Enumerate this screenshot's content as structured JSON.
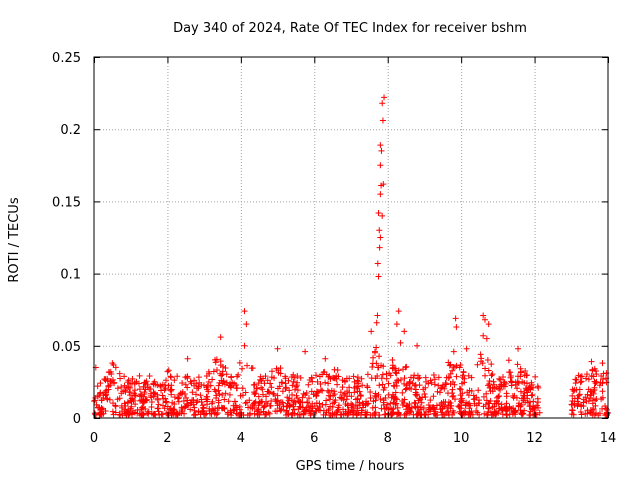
{
  "chart_data": {
    "type": "scatter",
    "title": "Day 340 of 2024, Rate Of TEC Index for receiver bshm",
    "xlabel": "GPS time / hours",
    "ylabel": "ROTI / TECUs",
    "xlim": [
      0,
      14
    ],
    "ylim": [
      0,
      0.25
    ],
    "xticks": [
      0,
      2,
      4,
      6,
      8,
      10,
      12,
      14
    ],
    "xtick_labels": [
      "0",
      "2",
      "4",
      "6",
      "8",
      "10",
      "12",
      "14"
    ],
    "yticks": [
      0,
      0.05,
      0.1,
      0.15,
      0.2,
      0.25
    ],
    "ytick_labels": [
      "0",
      "0.05",
      "0.1",
      "0.15",
      "0.2",
      "0.25"
    ],
    "grid": true,
    "marker": "+",
    "marker_color": "#ff0000",
    "notable_points": [
      {
        "x": 0.05,
        "y": 0.035
      },
      {
        "x": 0.5,
        "y": 0.038
      },
      {
        "x": 1.25,
        "y": 0.02
      },
      {
        "x": 2.55,
        "y": 0.041
      },
      {
        "x": 3.45,
        "y": 0.056
      },
      {
        "x": 4.1,
        "y": 0.074
      },
      {
        "x": 4.15,
        "y": 0.065
      },
      {
        "x": 4.1,
        "y": 0.05
      },
      {
        "x": 5.0,
        "y": 0.048
      },
      {
        "x": 5.75,
        "y": 0.046
      },
      {
        "x": 6.3,
        "y": 0.041
      },
      {
        "x": 7.55,
        "y": 0.06
      },
      {
        "x": 7.7,
        "y": 0.066
      },
      {
        "x": 7.72,
        "y": 0.071
      },
      {
        "x": 7.75,
        "y": 0.098
      },
      {
        "x": 7.73,
        "y": 0.107
      },
      {
        "x": 7.78,
        "y": 0.118
      },
      {
        "x": 7.8,
        "y": 0.125
      },
      {
        "x": 7.77,
        "y": 0.13
      },
      {
        "x": 7.85,
        "y": 0.14
      },
      {
        "x": 7.75,
        "y": 0.142
      },
      {
        "x": 7.8,
        "y": 0.155
      },
      {
        "x": 7.82,
        "y": 0.161
      },
      {
        "x": 7.88,
        "y": 0.162
      },
      {
        "x": 7.8,
        "y": 0.175
      },
      {
        "x": 7.83,
        "y": 0.185
      },
      {
        "x": 7.8,
        "y": 0.189
      },
      {
        "x": 7.87,
        "y": 0.206
      },
      {
        "x": 7.85,
        "y": 0.218
      },
      {
        "x": 7.9,
        "y": 0.222
      },
      {
        "x": 8.3,
        "y": 0.074
      },
      {
        "x": 8.25,
        "y": 0.065
      },
      {
        "x": 8.45,
        "y": 0.06
      },
      {
        "x": 8.35,
        "y": 0.052
      },
      {
        "x": 8.8,
        "y": 0.05
      },
      {
        "x": 9.85,
        "y": 0.069
      },
      {
        "x": 9.87,
        "y": 0.063
      },
      {
        "x": 9.8,
        "y": 0.046
      },
      {
        "x": 10.15,
        "y": 0.048
      },
      {
        "x": 10.6,
        "y": 0.071
      },
      {
        "x": 10.65,
        "y": 0.068
      },
      {
        "x": 10.75,
        "y": 0.065
      },
      {
        "x": 10.6,
        "y": 0.057
      },
      {
        "x": 10.7,
        "y": 0.055
      },
      {
        "x": 11.55,
        "y": 0.048
      },
      {
        "x": 11.3,
        "y": 0.04
      },
      {
        "x": 13.55,
        "y": 0.039
      },
      {
        "x": 13.85,
        "y": 0.038
      }
    ],
    "dense_band": {
      "description": "thousands of + markers forming a band from about 0.005 to 0.03 ROTI",
      "x_ranges": [
        [
          0.0,
          12.15
        ],
        [
          13.0,
          14.0
        ]
      ],
      "gap": [
        12.15,
        13.0
      ],
      "typical_y_range": [
        0.005,
        0.03
      ],
      "local_peaks": [
        {
          "x": 0.05,
          "y": 0.036
        },
        {
          "x": 0.5,
          "y": 0.038
        },
        {
          "x": 2.1,
          "y": 0.034
        },
        {
          "x": 3.4,
          "y": 0.045
        },
        {
          "x": 4.1,
          "y": 0.045
        },
        {
          "x": 5.0,
          "y": 0.04
        },
        {
          "x": 6.5,
          "y": 0.036
        },
        {
          "x": 7.7,
          "y": 0.05
        },
        {
          "x": 8.3,
          "y": 0.05
        },
        {
          "x": 9.8,
          "y": 0.045
        },
        {
          "x": 10.6,
          "y": 0.05
        },
        {
          "x": 11.5,
          "y": 0.04
        },
        {
          "x": 13.6,
          "y": 0.035
        },
        {
          "x": 13.85,
          "y": 0.036
        }
      ]
    }
  }
}
